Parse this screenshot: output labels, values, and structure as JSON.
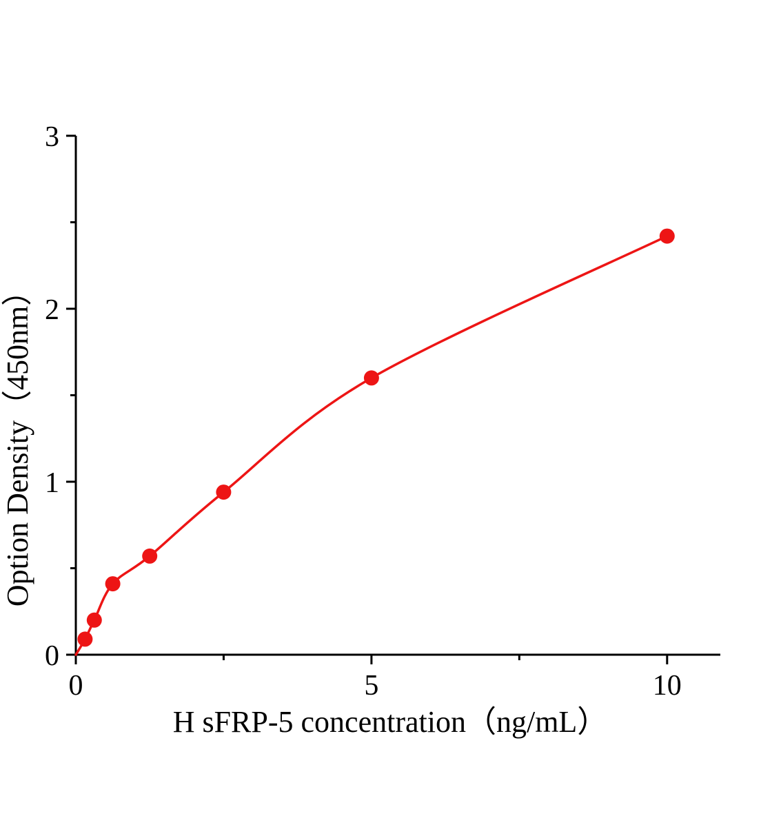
{
  "figure": {
    "background": "#ffffff"
  },
  "chart_data": {
    "type": "scatter",
    "title": "",
    "xlabel": "H sFRP-5 concentration（ng/mL）",
    "ylabel": "Option Density（450nm）",
    "x": [
      0.156,
      0.3125,
      0.625,
      1.25,
      2.5,
      5,
      10
    ],
    "y": [
      0.09,
      0.2,
      0.41,
      0.57,
      0.94,
      1.6,
      2.42
    ],
    "fit_curve": {
      "description": "smooth saturating standard curve through the data points, starting at the origin",
      "anchor_start": {
        "x": 0,
        "y": 0
      }
    },
    "xlim": [
      0,
      10.9
    ],
    "ylim": [
      0,
      3
    ],
    "x_major_ticks": [
      0,
      5,
      10
    ],
    "x_minor_ticks": [
      2.5,
      7.5
    ],
    "y_major_ticks": [
      0,
      1,
      2,
      3
    ],
    "y_minor_ticks": [
      0.5,
      1.5,
      2.5
    ],
    "grid": false,
    "legend": null,
    "line_color": "#ed1515",
    "marker_color": "#ed1515",
    "axis_color": "#000000",
    "marker_radius": 11,
    "line_width": 3.5
  }
}
